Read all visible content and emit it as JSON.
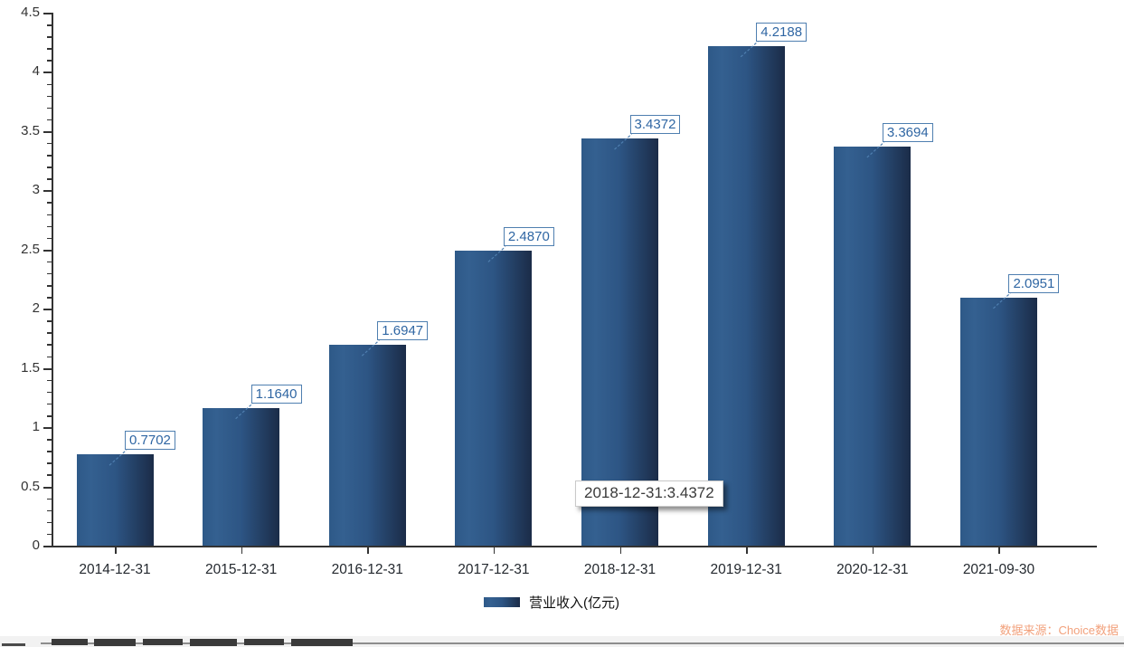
{
  "chart_data": {
    "type": "bar",
    "title": "",
    "categories": [
      "2014-12-31",
      "2015-12-31",
      "2016-12-31",
      "2017-12-31",
      "2018-12-31",
      "2019-12-31",
      "2020-12-31",
      "2021-09-30"
    ],
    "values": [
      0.7702,
      1.164,
      1.6947,
      2.487,
      3.4372,
      4.2188,
      3.3694,
      2.0951
    ],
    "value_labels": [
      "0.7702",
      "1.1640",
      "1.6947",
      "2.4870",
      "3.4372",
      "4.2188",
      "3.3694",
      "2.0951"
    ],
    "series_name": "营业收入(亿元)",
    "legend": "营业收入(亿元)",
    "legend_position": "bottom",
    "xlabel": "",
    "ylabel": "",
    "ylim": [
      0,
      4.5
    ],
    "ytick_labels": [
      "0",
      "0.5",
      "1",
      "1.5",
      "2",
      "2.5",
      "3",
      "3.5",
      "4",
      "4.5"
    ],
    "ytick_step": 0.5,
    "minor_tick_step": 0.1,
    "grid": false,
    "tooltip": "2018-12-31:3.4372",
    "colors": {
      "bar_light": "#346090",
      "bar_dark": "#1b2c48",
      "value_label_blue": "#2f66a3",
      "value_label_border": "#4f7fb0",
      "axis": "#333333",
      "source_orange": "#f2a17c"
    }
  },
  "footer": {
    "source": "数据来源：Choice数据"
  }
}
